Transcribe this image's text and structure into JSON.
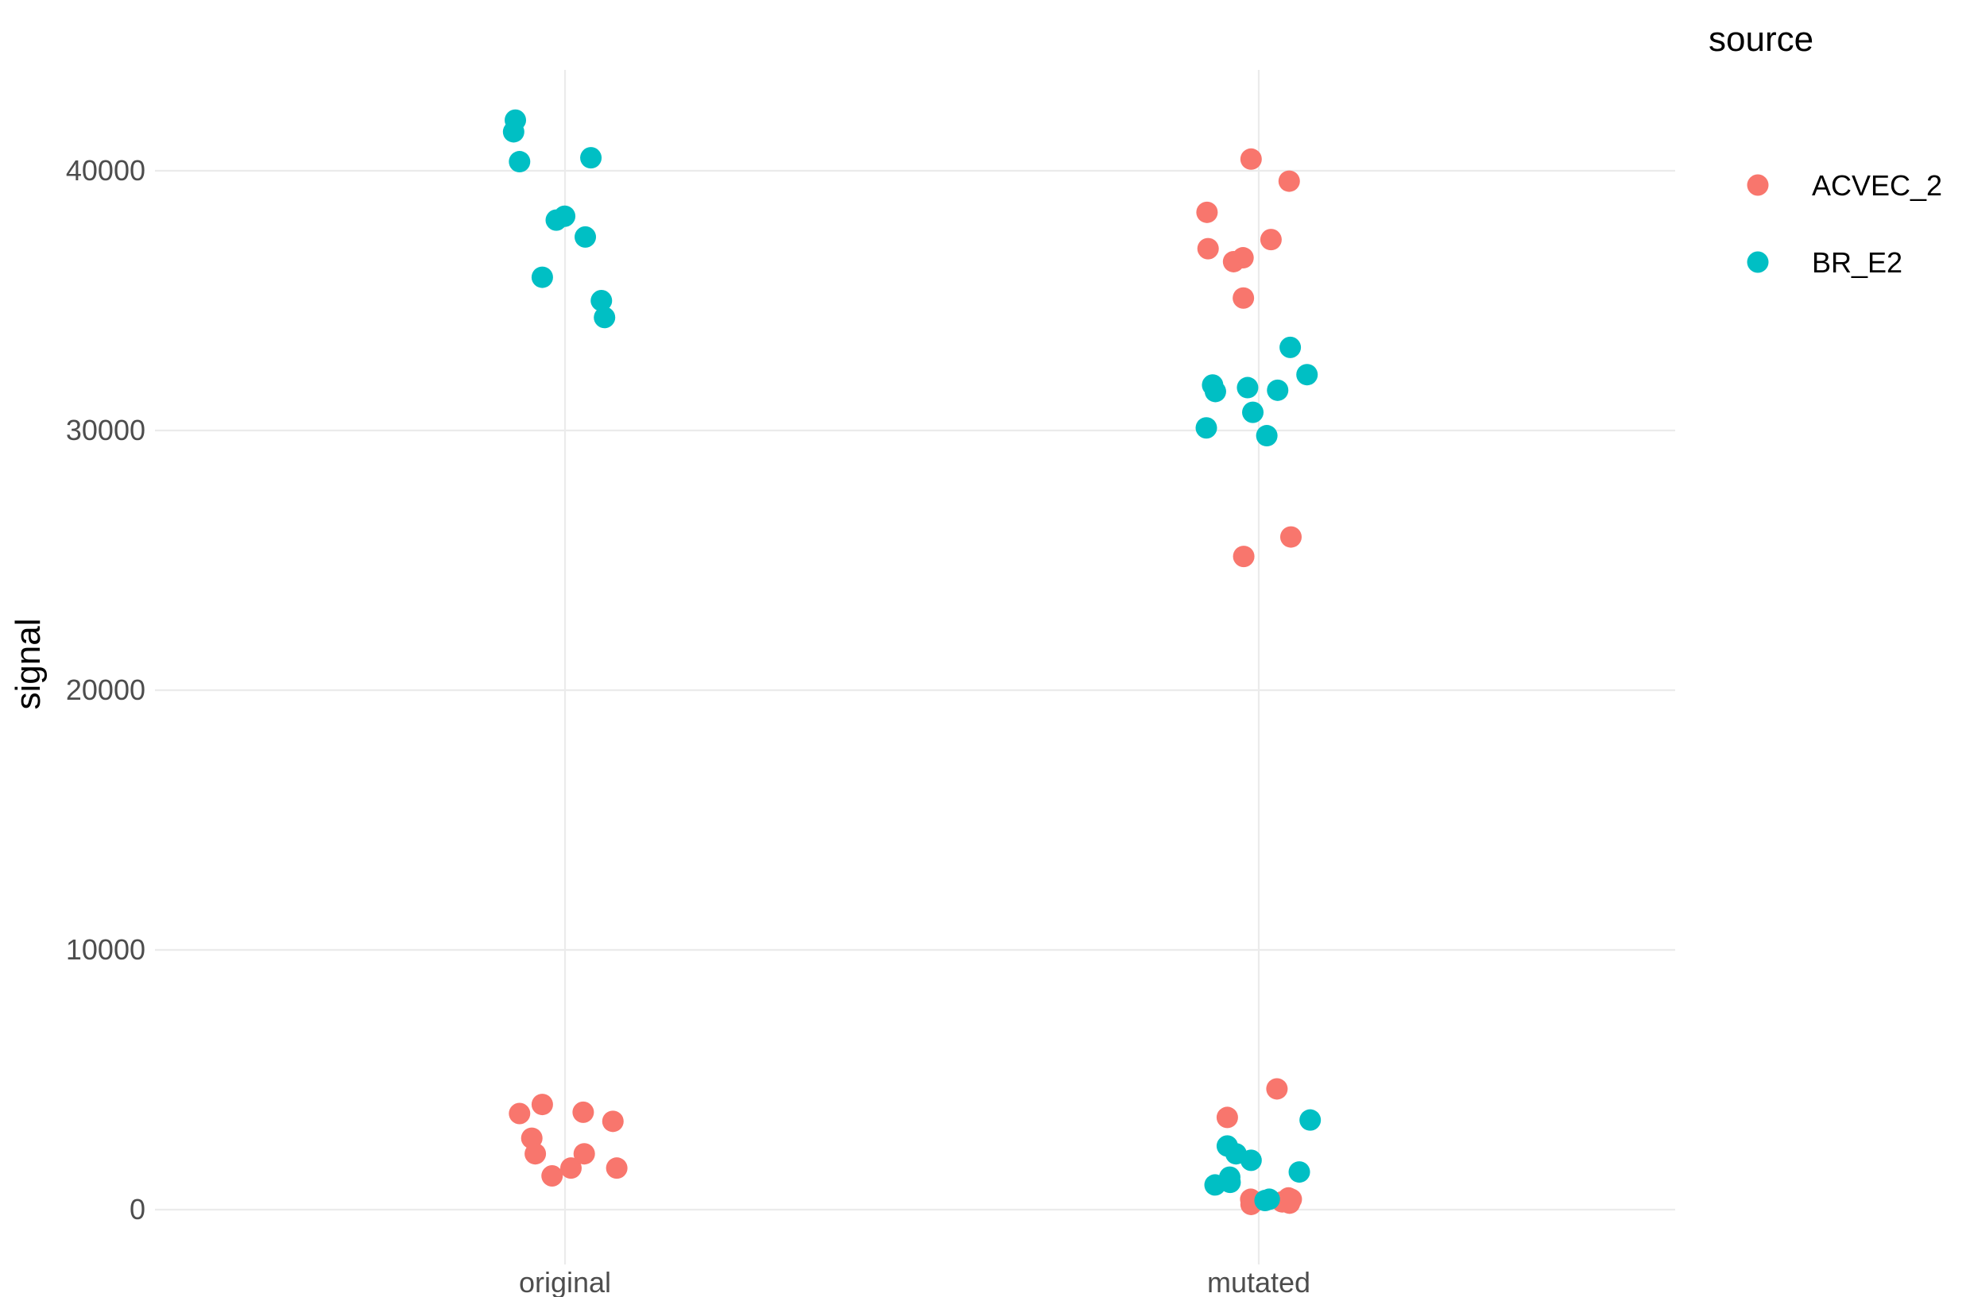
{
  "chart_data": {
    "type": "scatter",
    "title": "",
    "xlabel": "",
    "ylabel": "signal",
    "categories": [
      "original",
      "mutated"
    ],
    "ylim": [
      -1500,
      44500
    ],
    "yticks": [
      0,
      10000,
      20000,
      30000,
      40000
    ],
    "yticks_labels": [
      "0",
      "10000",
      "20000",
      "30000",
      "40000"
    ],
    "grid": true,
    "legend": {
      "title": "source",
      "position": "right"
    },
    "series": [
      {
        "name": "ACVEC_2",
        "color": "#F8766D",
        "points": [
          {
            "category": "original",
            "jitter": -0.13,
            "y": 3700
          },
          {
            "category": "original",
            "jitter": -0.095,
            "y": 2750
          },
          {
            "category": "original",
            "jitter": -0.085,
            "y": 2150
          },
          {
            "category": "original",
            "jitter": -0.065,
            "y": 4050
          },
          {
            "category": "original",
            "jitter": -0.037,
            "y": 1300
          },
          {
            "category": "original",
            "jitter": 0.017,
            "y": 1600
          },
          {
            "category": "original",
            "jitter": 0.052,
            "y": 3750
          },
          {
            "category": "original",
            "jitter": 0.055,
            "y": 2150
          },
          {
            "category": "original",
            "jitter": 0.137,
            "y": 3400
          },
          {
            "category": "original",
            "jitter": 0.148,
            "y": 1600
          },
          {
            "category": "mutated",
            "jitter": -0.148,
            "y": 38400
          },
          {
            "category": "mutated",
            "jitter": -0.145,
            "y": 37000
          },
          {
            "category": "mutated",
            "jitter": -0.072,
            "y": 36500
          },
          {
            "category": "mutated",
            "jitter": -0.045,
            "y": 36650
          },
          {
            "category": "mutated",
            "jitter": -0.044,
            "y": 35100
          },
          {
            "category": "mutated",
            "jitter": -0.022,
            "y": 40450
          },
          {
            "category": "mutated",
            "jitter": 0.035,
            "y": 37350
          },
          {
            "category": "mutated",
            "jitter": 0.087,
            "y": 39600
          },
          {
            "category": "mutated",
            "jitter": 0.092,
            "y": 25900
          },
          {
            "category": "mutated",
            "jitter": -0.043,
            "y": 25150
          },
          {
            "category": "mutated",
            "jitter": -0.09,
            "y": 3550
          },
          {
            "category": "mutated",
            "jitter": 0.052,
            "y": 4650
          },
          {
            "category": "mutated",
            "jitter": -0.023,
            "y": 400
          },
          {
            "category": "mutated",
            "jitter": -0.022,
            "y": 200
          },
          {
            "category": "mutated",
            "jitter": 0.067,
            "y": 300
          },
          {
            "category": "mutated",
            "jitter": 0.085,
            "y": 450
          },
          {
            "category": "mutated",
            "jitter": 0.088,
            "y": 250
          },
          {
            "category": "mutated",
            "jitter": 0.093,
            "y": 400
          }
        ]
      },
      {
        "name": "BR_E2",
        "color": "#00BFC4",
        "points": [
          {
            "category": "original",
            "jitter": -0.147,
            "y": 41500
          },
          {
            "category": "original",
            "jitter": -0.142,
            "y": 41950
          },
          {
            "category": "original",
            "jitter": -0.13,
            "y": 40350
          },
          {
            "category": "original",
            "jitter": -0.065,
            "y": 35900
          },
          {
            "category": "original",
            "jitter": -0.025,
            "y": 38100
          },
          {
            "category": "original",
            "jitter": -0.001,
            "y": 38250
          },
          {
            "category": "original",
            "jitter": 0.058,
            "y": 37450
          },
          {
            "category": "original",
            "jitter": 0.074,
            "y": 40500
          },
          {
            "category": "original",
            "jitter": 0.104,
            "y": 35000
          },
          {
            "category": "original",
            "jitter": 0.113,
            "y": 34350
          },
          {
            "category": "mutated",
            "jitter": -0.15,
            "y": 30100
          },
          {
            "category": "mutated",
            "jitter": -0.132,
            "y": 31750
          },
          {
            "category": "mutated",
            "jitter": -0.124,
            "y": 31500
          },
          {
            "category": "mutated",
            "jitter": -0.032,
            "y": 31650
          },
          {
            "category": "mutated",
            "jitter": -0.017,
            "y": 30700
          },
          {
            "category": "mutated",
            "jitter": 0.023,
            "y": 29800
          },
          {
            "category": "mutated",
            "jitter": 0.054,
            "y": 31550
          },
          {
            "category": "mutated",
            "jitter": 0.09,
            "y": 33200
          },
          {
            "category": "mutated",
            "jitter": 0.138,
            "y": 32150
          },
          {
            "category": "mutated",
            "jitter": -0.09,
            "y": 2450
          },
          {
            "category": "mutated",
            "jitter": -0.065,
            "y": 2150
          },
          {
            "category": "mutated",
            "jitter": -0.022,
            "y": 1900
          },
          {
            "category": "mutated",
            "jitter": -0.125,
            "y": 950
          },
          {
            "category": "mutated",
            "jitter": -0.082,
            "y": 1050
          },
          {
            "category": "mutated",
            "jitter": -0.083,
            "y": 1250
          },
          {
            "category": "mutated",
            "jitter": 0.018,
            "y": 350
          },
          {
            "category": "mutated",
            "jitter": 0.03,
            "y": 400
          },
          {
            "category": "mutated",
            "jitter": 0.116,
            "y": 1450
          },
          {
            "category": "mutated",
            "jitter": 0.147,
            "y": 3450
          }
        ]
      }
    ]
  }
}
